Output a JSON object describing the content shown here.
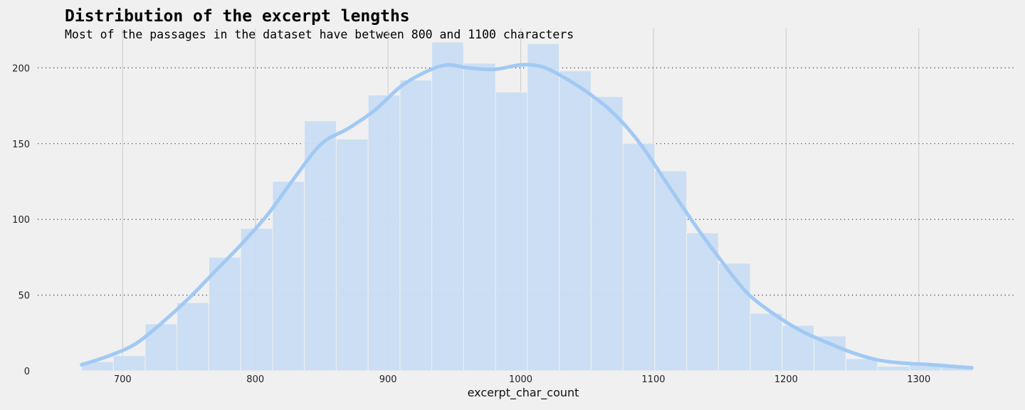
{
  "chart_data": {
    "type": "bar",
    "title": "Distribution of the excerpt lengths",
    "subtitle": "Most of the passages in the dataset have between 800 and 1100 characters",
    "xlabel": "excerpt_char_count",
    "ylabel": "",
    "xlim": [
      636,
      1372
    ],
    "ylim": [
      0,
      226
    ],
    "x_ticks": [
      700,
      800,
      900,
      1000,
      1100,
      1200,
      1300
    ],
    "y_ticks": [
      0,
      50,
      100,
      150,
      200
    ],
    "grid": {
      "x": "solid",
      "y": "dotted"
    },
    "colors": {
      "bars": "#c8dcf2",
      "kde": "#a1c9f4",
      "background": "#f0f0f0"
    },
    "bins": {
      "start": 669,
      "width": 24,
      "counts": [
        6,
        10,
        31,
        45,
        75,
        94,
        125,
        165,
        153,
        182,
        192,
        217,
        203,
        184,
        216,
        198,
        181,
        150,
        132,
        91,
        71,
        38,
        30,
        23,
        8,
        3,
        5,
        3
      ]
    },
    "kde": {
      "x": [
        669,
        690,
        710,
        730,
        750,
        770,
        790,
        810,
        830,
        850,
        870,
        890,
        910,
        930,
        945,
        960,
        980,
        1000,
        1015,
        1030,
        1050,
        1070,
        1090,
        1110,
        1130,
        1150,
        1170,
        1190,
        1210,
        1230,
        1250,
        1270,
        1290,
        1310,
        1340
      ],
      "y": [
        4,
        10,
        18,
        32,
        48,
        66,
        84,
        104,
        128,
        150,
        160,
        172,
        188,
        198,
        202,
        200,
        199,
        202,
        201,
        195,
        184,
        170,
        150,
        124,
        98,
        74,
        52,
        38,
        27,
        19,
        12,
        7,
        5,
        4,
        2
      ]
    }
  }
}
